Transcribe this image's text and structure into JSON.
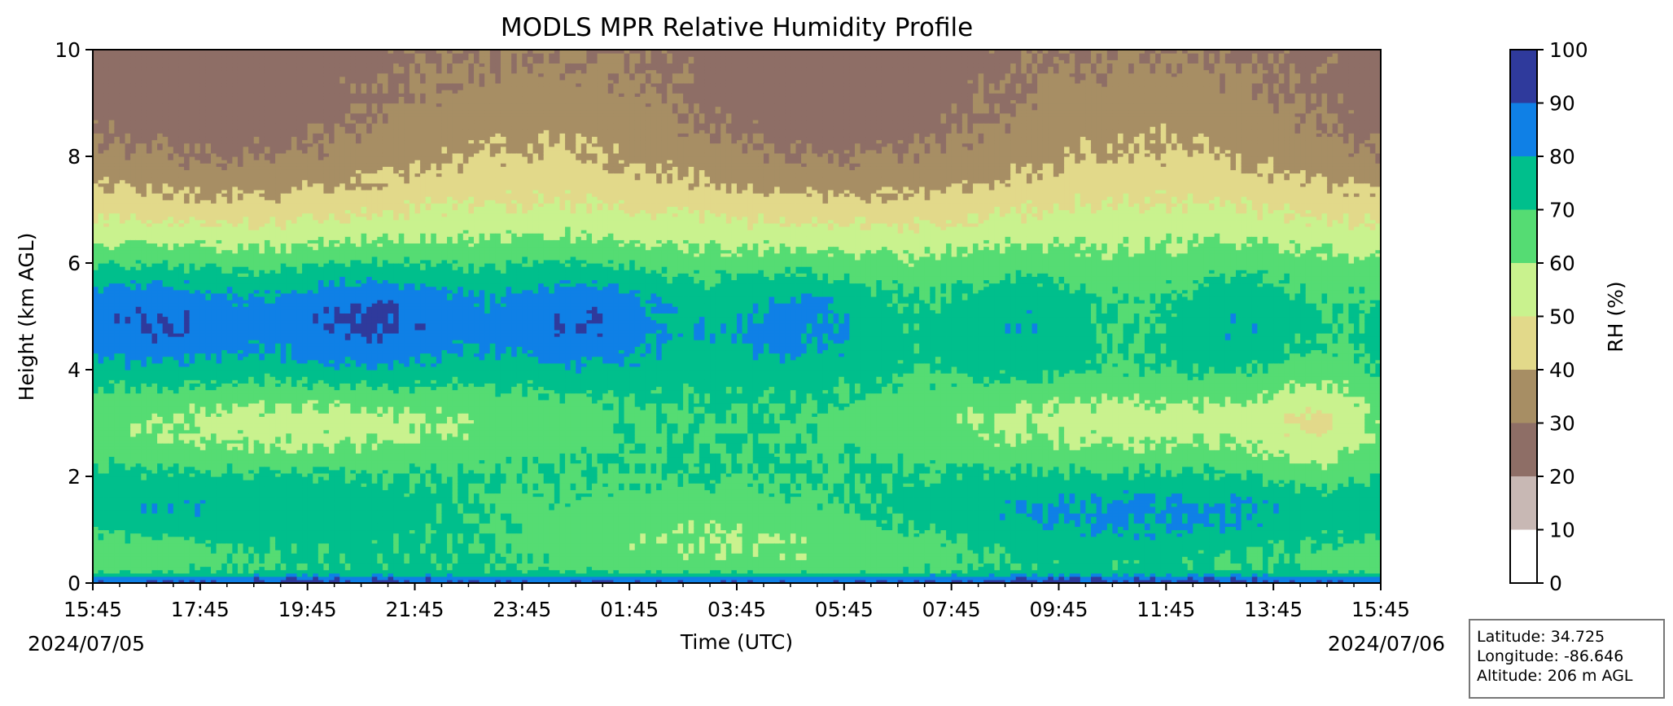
{
  "chart_data": {
    "type": "heatmap",
    "title": "MODLS MPR Relative Humidity Profile",
    "xlabel": "Time (UTC)",
    "ylabel": "Height (km AGL)",
    "x_ticks": [
      "15:45",
      "17:45",
      "19:45",
      "21:45",
      "23:45",
      "01:45",
      "03:45",
      "05:45",
      "07:45",
      "09:45",
      "11:45",
      "13:45",
      "15:45"
    ],
    "date_labels": {
      "start": "2024/07/05",
      "end": "2024/07/06"
    },
    "ylim": [
      0,
      10
    ],
    "y_ticks": [
      "0",
      "2",
      "4",
      "6",
      "8",
      "10"
    ],
    "colorbar": {
      "label": "RH (%)",
      "levels": [
        0,
        10,
        20,
        30,
        40,
        50,
        60,
        70,
        80,
        90,
        100
      ],
      "tick_labels": [
        "0",
        "10",
        "20",
        "30",
        "40",
        "50",
        "60",
        "70",
        "80",
        "90",
        "100"
      ],
      "colors": [
        "#ffffff",
        "#c8b8b4",
        "#8e6e66",
        "#a78e64",
        "#e2d98a",
        "#c9f28e",
        "#55dc73",
        "#00bf8c",
        "#0f80e6",
        "#2f3a9c"
      ]
    },
    "approx_profile": {
      "note_heights_km": [
        0,
        10
      ],
      "contour_heights_km_by_rh": {
        "90": [
          0.05,
          0.05
        ],
        "80": [
          1.0,
          4.0,
          6.4
        ],
        "70": [
          0.3,
          2.2,
          4.0,
          6.6
        ],
        "60": [
          0.9,
          2.8,
          7.0
        ],
        "50": [
          7.6
        ],
        "40": [
          8.2
        ],
        "30": [
          9.0
        ],
        "20": [
          9.5
        ]
      }
    }
  },
  "info_box": {
    "latitude": "Latitude: 34.725",
    "longitude": "Longitude: -86.646",
    "altitude": "Altitude: 206 m AGL"
  }
}
